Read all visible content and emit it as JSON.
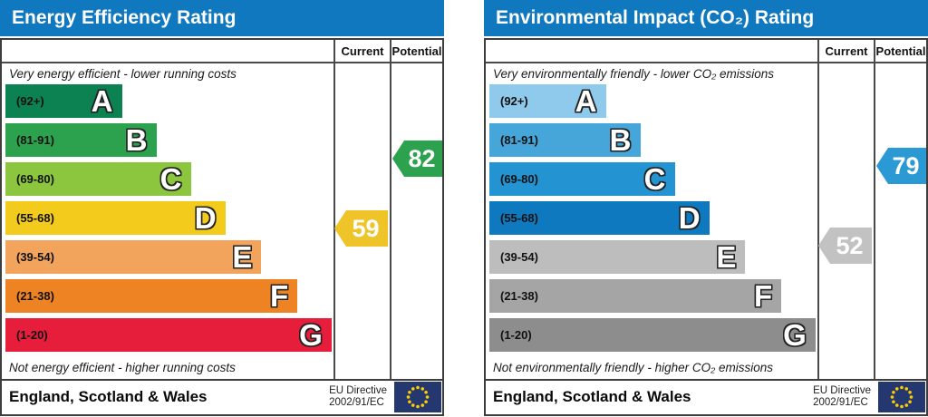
{
  "header_color": "#1078be",
  "eu_flag": {
    "field": "#24376e",
    "stars": "#ffcc00"
  },
  "chart_data": [
    {
      "type": "bar",
      "title": "Energy Efficiency Rating",
      "columns": [
        "Current",
        "Potential"
      ],
      "top_note": "Very energy efficient - lower running costs",
      "bottom_note": "Not energy efficient - higher running costs",
      "bands": [
        {
          "letter": "A",
          "range_label": "(92+)",
          "min": 92,
          "max": 100,
          "color": "#0c8152",
          "width_pct": 35.5
        },
        {
          "letter": "B",
          "range_label": "(81-91)",
          "min": 81,
          "max": 91,
          "color": "#2da24e",
          "width_pct": 46
        },
        {
          "letter": "C",
          "range_label": "(69-80)",
          "min": 69,
          "max": 80,
          "color": "#8cc63f",
          "width_pct": 56.5
        },
        {
          "letter": "D",
          "range_label": "(55-68)",
          "min": 55,
          "max": 68,
          "color": "#f2cb1d",
          "width_pct": 67
        },
        {
          "letter": "E",
          "range_label": "(39-54)",
          "min": 39,
          "max": 54,
          "color": "#f2a45c",
          "width_pct": 78
        },
        {
          "letter": "F",
          "range_label": "(21-38)",
          "min": 21,
          "max": 38,
          "color": "#ee8323",
          "width_pct": 89
        },
        {
          "letter": "G",
          "range_label": "(1-20)",
          "min": 1,
          "max": 20,
          "color": "#e61e3c",
          "width_pct": 99.4
        }
      ],
      "current": {
        "value": 59,
        "color": "#eec428"
      },
      "potential": {
        "value": 82,
        "color": "#2da24e"
      },
      "footer_region": "England, Scotland & Wales",
      "directive": [
        "EU Directive",
        "2002/91/EC"
      ]
    },
    {
      "type": "bar",
      "title": "Environmental Impact (CO₂) Rating",
      "columns": [
        "Current",
        "Potential"
      ],
      "top_note": "Very environmentally friendly - lower CO₂ emissions",
      "bottom_note": "Not environmentally friendly - higher CO₂ emissions",
      "bands": [
        {
          "letter": "A",
          "range_label": "(92+)",
          "min": 92,
          "max": 100,
          "color": "#8fcaec",
          "width_pct": 35.5
        },
        {
          "letter": "B",
          "range_label": "(81-91)",
          "min": 81,
          "max": 91,
          "color": "#47a6d9",
          "width_pct": 46
        },
        {
          "letter": "C",
          "range_label": "(69-80)",
          "min": 69,
          "max": 80,
          "color": "#2493d1",
          "width_pct": 56.5
        },
        {
          "letter": "D",
          "range_label": "(55-68)",
          "min": 55,
          "max": 68,
          "color": "#0f79bf",
          "width_pct": 67
        },
        {
          "letter": "E",
          "range_label": "(39-54)",
          "min": 39,
          "max": 54,
          "color": "#bdbdbd",
          "width_pct": 78
        },
        {
          "letter": "F",
          "range_label": "(21-38)",
          "min": 21,
          "max": 38,
          "color": "#a5a5a5",
          "width_pct": 89
        },
        {
          "letter": "G",
          "range_label": "(1-20)",
          "min": 1,
          "max": 20,
          "color": "#8d8d8d",
          "width_pct": 99.4
        }
      ],
      "current": {
        "value": 52,
        "color": "#c2c2c2"
      },
      "potential": {
        "value": 79,
        "color": "#2b99d4"
      },
      "footer_region": "England, Scotland & Wales",
      "directive": [
        "EU Directive",
        "2002/91/EC"
      ]
    }
  ]
}
